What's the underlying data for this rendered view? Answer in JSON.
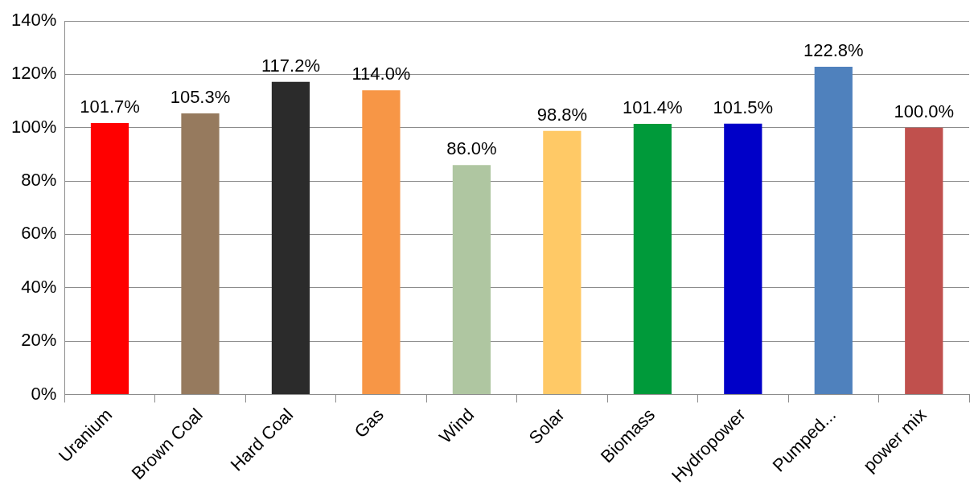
{
  "chart_data": {
    "type": "bar",
    "categories": [
      "Uranium",
      "Brown Coal",
      "Hard Coal",
      "Gas",
      "Wind",
      "Solar",
      "Biomass",
      "Hydropower",
      "Pumped...",
      "power mix"
    ],
    "values": [
      101.7,
      105.3,
      117.2,
      114.0,
      86.0,
      98.8,
      101.4,
      101.5,
      122.8,
      100.0
    ],
    "colors": [
      "#ff0000",
      "#967a5e",
      "#2b2b2b",
      "#f79646",
      "#afc6a1",
      "#ffc966",
      "#009a3a",
      "#0000c8",
      "#4f81bd",
      "#c0504d"
    ],
    "value_labels": [
      "101.7%",
      "105.3%",
      "117.2%",
      "114.0%",
      "86.0%",
      "98.8%",
      "101.4%",
      "101.5%",
      "122.8%",
      "100.0%"
    ],
    "ylim": [
      0,
      140
    ],
    "yticks": [
      {
        "value": 0,
        "label": "0%"
      },
      {
        "value": 20,
        "label": "20%"
      },
      {
        "value": 40,
        "label": "40%"
      },
      {
        "value": 60,
        "label": "60%"
      },
      {
        "value": 80,
        "label": "80%"
      },
      {
        "value": 100,
        "label": "100%"
      },
      {
        "value": 120,
        "label": "120%"
      },
      {
        "value": 140,
        "label": "140%"
      }
    ],
    "grid": "y",
    "legend": false
  }
}
